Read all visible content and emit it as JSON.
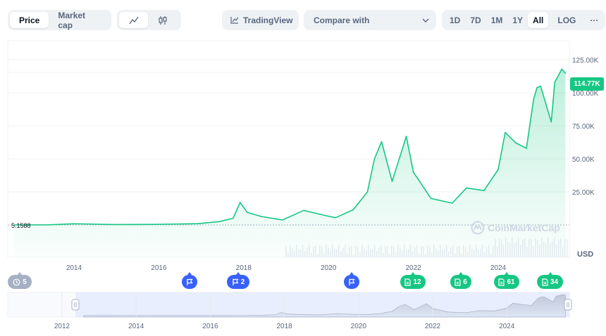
{
  "toolbar": {
    "tabs": [
      {
        "label": "Price",
        "active": true
      },
      {
        "label": "Market cap",
        "active": false
      }
    ],
    "chart_types": [
      {
        "icon": "line-chart-icon",
        "active": true
      },
      {
        "icon": "candlestick-chart-icon",
        "active": false
      }
    ],
    "tradingview_label": "TradingView",
    "compare_label": "Compare with",
    "ranges": [
      "1D",
      "7D",
      "1M",
      "1Y",
      "All"
    ],
    "active_range": "All",
    "log_label": "LOG",
    "more_label": "···"
  },
  "chart": {
    "current_price": "114.77K",
    "start_price": "5.1588",
    "currency": "USD",
    "watermark": "CoinMarketCap",
    "colors": {
      "line": "#16c784",
      "accent": "#3861fb",
      "grid": "#eff2f5",
      "axis_text": "#58667e"
    },
    "markers": [
      {
        "label": "5",
        "kind": "history",
        "color": "grey"
      },
      {
        "label": "",
        "kind": "flag",
        "color": "blue"
      },
      {
        "label": "2",
        "kind": "flag",
        "color": "blue"
      },
      {
        "label": "",
        "kind": "flag",
        "color": "blue"
      },
      {
        "label": "12",
        "kind": "news",
        "color": "green"
      },
      {
        "label": "6",
        "kind": "news",
        "color": "green"
      },
      {
        "label": "61",
        "kind": "news",
        "color": "green"
      },
      {
        "label": "34",
        "kind": "news",
        "color": "green"
      }
    ]
  },
  "chart_data": {
    "type": "line",
    "title": "",
    "xlabel": "",
    "ylabel": "USD",
    "ylim": [
      0,
      150000
    ],
    "y_ticks": [
      25000,
      50000,
      75000,
      100000,
      125000
    ],
    "y_tick_labels": [
      "25.00K",
      "50.00K",
      "75.00K",
      "100.00K",
      "125.00K"
    ],
    "x_tick_labels": [
      "2014",
      "2016",
      "2018",
      "2020",
      "2022",
      "2024"
    ],
    "navigator_tick_labels": [
      "2012",
      "2014",
      "2016",
      "2018",
      "2020",
      "2022",
      "2024"
    ],
    "grid": true,
    "series": [
      {
        "name": "",
        "x": [
          "2012-08",
          "2013-06",
          "2014-01",
          "2014-12",
          "2015-12",
          "2016-12",
          "2017-06",
          "2017-10",
          "2017-12",
          "2018-02",
          "2018-06",
          "2018-12",
          "2019-06",
          "2019-12",
          "2020-03",
          "2020-08",
          "2020-12",
          "2021-02",
          "2021-04",
          "2021-07",
          "2021-11",
          "2022-01",
          "2022-06",
          "2022-12",
          "2023-04",
          "2023-09",
          "2024-01",
          "2024-03",
          "2024-06",
          "2024-09",
          "2024-11",
          "2024-12",
          "2025-01",
          "2025-04",
          "2025-05",
          "2025-07",
          "2025-08"
        ],
        "values": [
          5.16,
          120,
          900,
          320,
          430,
          960,
          2500,
          5000,
          17000,
          9500,
          6400,
          3800,
          11000,
          7200,
          5500,
          11500,
          25000,
          50000,
          63000,
          33000,
          67000,
          40000,
          20000,
          16500,
          28000,
          26000,
          42000,
          70000,
          62000,
          58000,
          95000,
          104000,
          105000,
          78000,
          108000,
          118000,
          114770
        ]
      }
    ]
  }
}
